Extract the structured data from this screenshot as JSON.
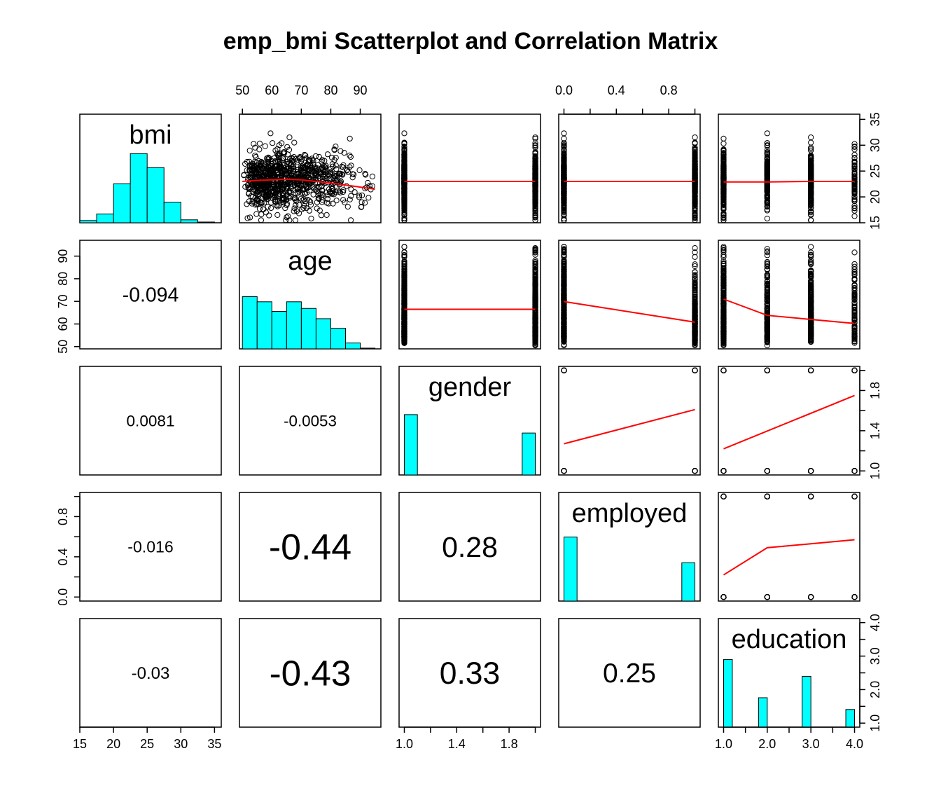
{
  "title": "emp_bmi Scatterplot and Correlation Matrix",
  "colors": {
    "hist_fill": "#00FFFF",
    "smoother": "#FF0000",
    "points": "#000000"
  },
  "chart_data": {
    "type": "scatterplot-matrix",
    "title": "emp_bmi Scatterplot and Correlation Matrix",
    "variables": [
      {
        "name": "bmi",
        "range": [
          15,
          36
        ],
        "ticks": [
          15,
          20,
          25,
          30,
          35
        ],
        "tick_labels": [
          "15",
          "20",
          "25",
          "30",
          "35"
        ]
      },
      {
        "name": "age",
        "range": [
          49,
          97
        ],
        "ticks": [
          50,
          60,
          70,
          80,
          90
        ],
        "tick_labels": [
          "50",
          "60",
          "70",
          "80",
          "90"
        ]
      },
      {
        "name": "gender",
        "range": [
          0.96,
          2.04
        ],
        "ticks": [
          1.0,
          1.2,
          1.4,
          1.6,
          1.8,
          2.0
        ],
        "tick_labels": [
          "1.0",
          "",
          "1.4",
          "",
          "1.8",
          ""
        ]
      },
      {
        "name": "employed",
        "range": [
          -0.04,
          1.04
        ],
        "ticks": [
          0.0,
          0.2,
          0.4,
          0.6,
          0.8,
          1.0
        ],
        "tick_labels": [
          "0.0",
          "",
          "0.4",
          "",
          "0.8",
          ""
        ]
      },
      {
        "name": "education",
        "range": [
          0.88,
          4.12
        ],
        "ticks": [
          1.0,
          1.5,
          2.0,
          2.5,
          3.0,
          3.5,
          4.0
        ],
        "tick_labels": [
          "1.0",
          "",
          "2.0",
          "",
          "3.0",
          "",
          "4.0"
        ]
      }
    ],
    "correlations": [
      {
        "row": "age",
        "col": "bmi",
        "value": "-0.094"
      },
      {
        "row": "gender",
        "col": "bmi",
        "value": "0.0081"
      },
      {
        "row": "gender",
        "col": "age",
        "value": "-0.0053"
      },
      {
        "row": "employed",
        "col": "bmi",
        "value": "-0.016"
      },
      {
        "row": "employed",
        "col": "age",
        "value": "-0.44"
      },
      {
        "row": "employed",
        "col": "gender",
        "value": "0.28"
      },
      {
        "row": "education",
        "col": "bmi",
        "value": "-0.03"
      },
      {
        "row": "education",
        "col": "age",
        "value": "-0.43"
      },
      {
        "row": "education",
        "col": "gender",
        "value": "0.33"
      },
      {
        "row": "education",
        "col": "employed",
        "value": "0.25"
      }
    ],
    "histograms": {
      "bmi": {
        "breaks": [
          15,
          17.5,
          20,
          22.5,
          25,
          27.5,
          30,
          32.5,
          35
        ],
        "density": [
          0.03,
          0.12,
          0.53,
          0.94,
          0.75,
          0.28,
          0.04,
          0.01
        ]
      },
      "age": {
        "breaks": [
          50,
          55,
          60,
          65,
          70,
          75,
          80,
          85,
          90,
          95
        ],
        "density": [
          0.71,
          0.64,
          0.51,
          0.64,
          0.55,
          0.41,
          0.28,
          0.08,
          0.01
        ]
      },
      "gender": {
        "breaks": [
          1.0,
          1.1,
          1.9,
          2.0
        ],
        "density": [
          0.82,
          0.0,
          0.57
        ]
      },
      "employed": {
        "breaks": [
          0.0,
          0.1,
          0.9,
          1.0
        ],
        "density": [
          0.87,
          0.0,
          0.52
        ]
      },
      "education": {
        "breaks": [
          1.0,
          1.2,
          1.8,
          2.0,
          2.8,
          3.0,
          3.8,
          4.0
        ],
        "density": [
          0.92,
          0.0,
          0.4,
          0.0,
          0.69,
          0.0,
          0.24
        ]
      }
    },
    "smoothers": {
      "bmi_vs_age": {
        "x": [
          50,
          55,
          60,
          65,
          70,
          75,
          80,
          85,
          90,
          95
        ],
        "y": [
          23.0,
          23.2,
          23.3,
          23.4,
          23.3,
          23.0,
          22.7,
          22.3,
          21.9,
          21.5
        ]
      },
      "bmi_vs_gender": {
        "x": [
          1,
          2
        ],
        "y": [
          23.0,
          23.0
        ]
      },
      "bmi_vs_employed": {
        "x": [
          0,
          1
        ],
        "y": [
          23.0,
          23.0
        ]
      },
      "bmi_vs_education": {
        "x": [
          1,
          2,
          3,
          4
        ],
        "y": [
          22.9,
          22.9,
          23.0,
          23.0
        ]
      },
      "age_vs_gender": {
        "x": [
          1,
          2
        ],
        "y": [
          66.5,
          66.5
        ]
      },
      "age_vs_employed": {
        "x": [
          0,
          1
        ],
        "y": [
          69.9,
          60.8
        ]
      },
      "age_vs_education": {
        "x": [
          1,
          2,
          3,
          4
        ],
        "y": [
          71.0,
          63.8,
          62.0,
          60.2
        ]
      },
      "gender_vs_employed": {
        "x": [
          0,
          1
        ],
        "y": [
          1.27,
          1.61
        ]
      },
      "gender_vs_education": {
        "x": [
          1,
          4
        ],
        "y": [
          1.22,
          1.75
        ]
      },
      "employed_vs_education": {
        "x": [
          1,
          2,
          3,
          4
        ],
        "y": [
          0.22,
          0.49,
          0.53,
          0.57
        ]
      }
    },
    "axes": {
      "left_outer_rows": [
        "age",
        "employed"
      ],
      "right_outer_rows": [
        "bmi",
        "gender",
        "education"
      ],
      "top_outer_cols": [
        "age",
        "employed"
      ],
      "bottom_outer_cols": [
        "bmi",
        "gender",
        "education"
      ]
    },
    "grid": false,
    "legend": "none"
  }
}
